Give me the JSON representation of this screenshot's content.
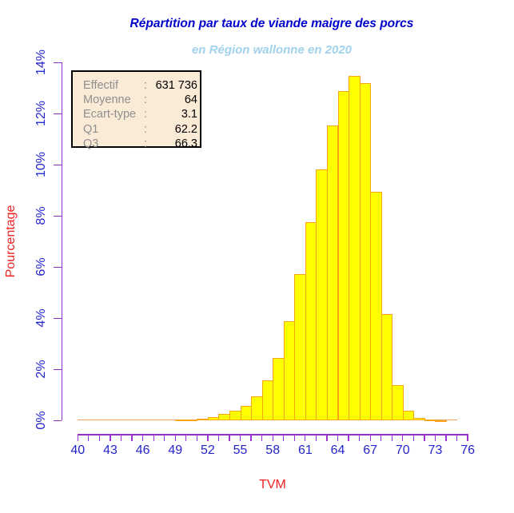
{
  "title": "Répartition par taux de viande maigre des porcs",
  "subtitle": "en Région wallonne en 2020",
  "stats_box": {
    "rows": [
      {
        "label": "Effectif",
        "sep": ":",
        "value": "631 736"
      },
      {
        "label": "Moyenne",
        "sep": ":",
        "value": "64"
      },
      {
        "label": "Ecart-type",
        "sep": ":",
        "value": "3.1"
      },
      {
        "label": "Q1",
        "sep": ":",
        "value": "62.2"
      },
      {
        "label": "Q3",
        "sep": ":",
        "value": "66.3"
      }
    ]
  },
  "chart_data": {
    "type": "bar",
    "title": "Répartition par taux de viande maigre des porcs",
    "subtitle": "en Région wallonne en 2020",
    "xlabel": "TVM",
    "ylabel": "Pourcentage",
    "x_range": [
      40,
      76
    ],
    "x_minor_tick_step": 1,
    "x_label_ticks": [
      40,
      43,
      46,
      49,
      52,
      55,
      58,
      61,
      64,
      67,
      70,
      73,
      76
    ],
    "y_tick_labels": [
      "0%",
      "2%",
      "4%",
      "6%",
      "8%",
      "10%",
      "12%",
      "14%"
    ],
    "y_tick_step_pct": 2,
    "ylim": [
      0,
      14
    ],
    "grid": false,
    "legend_position": "none",
    "bin_width": 1,
    "baseline_range": [
      40,
      75
    ],
    "bins_left_edge": [
      49,
      50,
      51,
      52,
      53,
      54,
      55,
      56,
      57,
      58,
      59,
      60,
      61,
      62,
      63,
      64,
      65,
      66,
      67,
      68,
      69,
      70,
      71,
      72,
      73
    ],
    "values_pct": [
      0.03,
      0.05,
      0.08,
      0.14,
      0.25,
      0.39,
      0.58,
      0.96,
      1.57,
      2.46,
      3.88,
      5.73,
      7.76,
      9.81,
      11.54,
      12.9,
      13.48,
      13.2,
      8.95,
      4.18,
      1.37,
      0.38,
      0.11,
      0.03,
      0.01
    ]
  },
  "colors": {
    "title": "#0000CC",
    "subtitle": "#A1D2EC",
    "axis": "#9932CC",
    "tick_labels": "#2525CD",
    "axis_titles": "#EE2222",
    "bar_fill": "#FFFF00",
    "bar_border": "#F8A41B",
    "baseline": "#EFA05C",
    "stats_box_bg": "#FAEBD7",
    "stats_box_border": "#000000",
    "stats_label": "#8F8F8F",
    "stats_value": "#000000"
  }
}
